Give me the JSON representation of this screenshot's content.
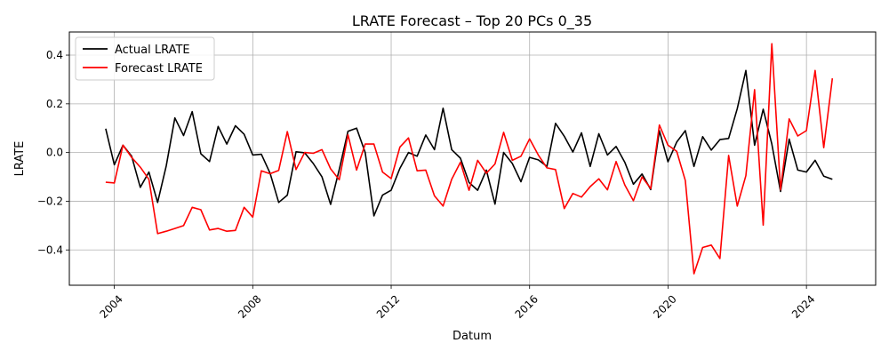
{
  "chart_data": {
    "type": "line",
    "title": "LRATE Forecast – Top 20 PCs 0_35",
    "xlabel": "Datum",
    "ylabel": "LRATE",
    "xlim": [
      2002.7,
      2026.0
    ],
    "ylim": [
      -0.545,
      0.495
    ],
    "x_ticks": [
      2004,
      2008,
      2012,
      2016,
      2020,
      2024
    ],
    "x_tick_labels": [
      "2004",
      "2008",
      "2012",
      "2016",
      "2020",
      "2024"
    ],
    "y_ticks": [
      -0.4,
      -0.2,
      0.0,
      0.2,
      0.4
    ],
    "y_tick_labels": [
      "−0.4",
      "−0.2",
      "0.0",
      "0.2",
      "0.4"
    ],
    "grid": true,
    "legend_position": "upper-left",
    "x": [
      2003.75,
      2004.0,
      2004.25,
      2004.5,
      2004.75,
      2005.0,
      2005.25,
      2005.5,
      2005.75,
      2006.0,
      2006.25,
      2006.5,
      2006.75,
      2007.0,
      2007.25,
      2007.5,
      2007.75,
      2008.0,
      2008.25,
      2008.5,
      2008.75,
      2009.0,
      2009.25,
      2009.5,
      2009.75,
      2010.0,
      2010.25,
      2010.5,
      2010.75,
      2011.0,
      2011.25,
      2011.5,
      2011.75,
      2012.0,
      2012.25,
      2012.5,
      2012.75,
      2013.0,
      2013.25,
      2013.5,
      2013.75,
      2014.0,
      2014.25,
      2014.5,
      2014.75,
      2015.0,
      2015.25,
      2015.5,
      2015.75,
      2016.0,
      2016.25,
      2016.5,
      2016.75,
      2017.0,
      2017.25,
      2017.5,
      2017.75,
      2018.0,
      2018.25,
      2018.5,
      2018.75,
      2019.0,
      2019.25,
      2019.5,
      2019.75,
      2020.0,
      2020.25,
      2020.5,
      2020.75,
      2021.0,
      2021.25,
      2021.5,
      2021.75,
      2022.0,
      2022.25,
      2022.5,
      2022.75,
      2023.0,
      2023.25,
      2023.5,
      2023.75,
      2024.0,
      2024.25,
      2024.5,
      2024.75
    ],
    "series": [
      {
        "name": "Actual LRATE",
        "color": "#000000",
        "values": [
          0.098,
          -0.05,
          0.03,
          -0.015,
          -0.143,
          -0.08,
          -0.205,
          -0.055,
          0.142,
          0.07,
          0.168,
          -0.005,
          -0.037,
          0.107,
          0.035,
          0.11,
          0.075,
          -0.01,
          -0.007,
          -0.085,
          -0.205,
          -0.175,
          0.003,
          -0.001,
          -0.045,
          -0.1,
          -0.213,
          -0.07,
          0.087,
          0.1,
          0.0,
          -0.26,
          -0.175,
          -0.155,
          -0.065,
          0.0,
          -0.015,
          0.072,
          0.012,
          0.182,
          0.012,
          -0.023,
          -0.123,
          -0.155,
          -0.072,
          -0.212,
          0.0,
          -0.045,
          -0.12,
          -0.02,
          -0.03,
          -0.057,
          0.12,
          0.067,
          0.002,
          0.081,
          -0.057,
          0.077,
          -0.01,
          0.025,
          -0.04,
          -0.13,
          -0.088,
          -0.152,
          0.09,
          -0.038,
          0.043,
          0.09,
          -0.057,
          0.065,
          0.01,
          0.053,
          0.058,
          0.18,
          0.337,
          0.03,
          0.178,
          0.035,
          -0.16,
          0.055,
          -0.072,
          -0.08,
          -0.032,
          -0.097,
          -0.11
        ]
      },
      {
        "name": "Forecast LRATE",
        "color": "#ff0000",
        "values": [
          -0.122,
          -0.125,
          0.03,
          -0.02,
          -0.06,
          -0.11,
          -0.333,
          -0.323,
          -0.312,
          -0.3,
          -0.225,
          -0.235,
          -0.318,
          -0.312,
          -0.323,
          -0.32,
          -0.225,
          -0.265,
          -0.075,
          -0.087,
          -0.073,
          0.086,
          -0.07,
          0.0,
          -0.003,
          0.012,
          -0.067,
          -0.112,
          0.073,
          -0.072,
          0.035,
          0.035,
          -0.08,
          -0.107,
          0.022,
          0.06,
          -0.075,
          -0.072,
          -0.178,
          -0.22,
          -0.11,
          -0.04,
          -0.155,
          -0.032,
          -0.085,
          -0.047,
          0.083,
          -0.032,
          -0.015,
          0.056,
          -0.01,
          -0.063,
          -0.07,
          -0.23,
          -0.168,
          -0.183,
          -0.14,
          -0.108,
          -0.153,
          -0.037,
          -0.133,
          -0.198,
          -0.1,
          -0.148,
          0.113,
          0.03,
          0.005,
          -0.115,
          -0.498,
          -0.39,
          -0.38,
          -0.435,
          -0.012,
          -0.22,
          -0.095,
          0.258,
          -0.298,
          0.447,
          -0.153,
          0.138,
          0.068,
          0.09,
          0.337,
          0.02,
          0.305
        ]
      }
    ]
  }
}
